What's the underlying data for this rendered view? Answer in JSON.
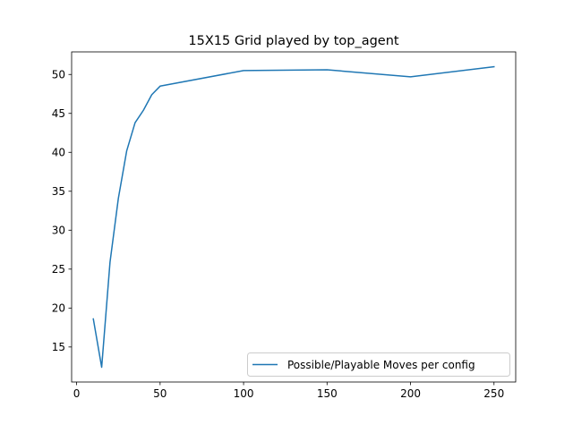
{
  "chart_data": {
    "type": "line",
    "title": "15X15 Grid played by top_agent",
    "xlabel": "",
    "ylabel": "",
    "xlim": [
      -3,
      263
    ],
    "ylim": [
      10.5,
      52.9
    ],
    "xticks": [
      0,
      50,
      100,
      150,
      200,
      250
    ],
    "yticks": [
      15,
      20,
      25,
      30,
      35,
      40,
      45,
      50
    ],
    "grid": false,
    "legend_position": "lower right",
    "series": [
      {
        "name": "Possible/Playable Moves per config",
        "color": "#1f77b4",
        "x": [
          10,
          15,
          20,
          25,
          30,
          35,
          40,
          45,
          50,
          100,
          150,
          200,
          250
        ],
        "y": [
          18.6,
          12.4,
          25.9,
          34.1,
          40.2,
          43.8,
          45.4,
          47.4,
          48.5,
          50.5,
          50.6,
          49.7,
          51.0
        ]
      }
    ]
  }
}
